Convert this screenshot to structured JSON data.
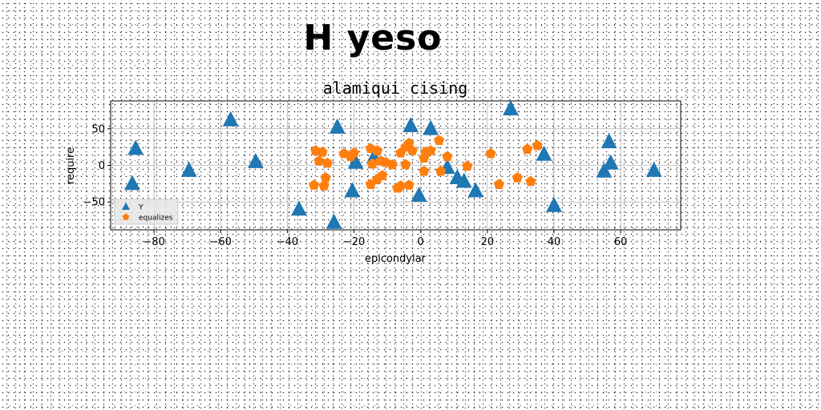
{
  "figure_title": "H yeso",
  "chart_data": {
    "type": "scatter",
    "title": "alamiqui cising",
    "xlabel": "epicondylar",
    "ylabel": "require",
    "xlim": [
      -93,
      78
    ],
    "ylim": [
      -88,
      88
    ],
    "xticks": [
      -80,
      -60,
      -40,
      -20,
      0,
      20,
      40,
      60
    ],
    "yticks": [
      -50,
      0,
      50
    ],
    "grid": true,
    "legend": "lower-left",
    "series": [
      {
        "name": "Y",
        "marker": "triangle",
        "color": "#1f77b4",
        "points": [
          [
            -85.5,
            23
          ],
          [
            -86.5,
            -25
          ],
          [
            -69.5,
            -7
          ],
          [
            -57,
            62
          ],
          [
            -49.5,
            5
          ],
          [
            -36.5,
            -60
          ],
          [
            -25,
            52
          ],
          [
            -26,
            -78
          ],
          [
            -20.5,
            -35
          ],
          [
            -19.5,
            4
          ],
          [
            -14,
            11
          ],
          [
            -3,
            54
          ],
          [
            3,
            50
          ],
          [
            27,
            77
          ],
          [
            37,
            15
          ],
          [
            40,
            -55
          ],
          [
            56.5,
            32
          ],
          [
            57,
            3
          ],
          [
            55,
            -8
          ],
          [
            70,
            -7
          ],
          [
            -0.5,
            -41
          ],
          [
            8,
            -3
          ],
          [
            11,
            -17
          ],
          [
            13,
            -22
          ],
          [
            16.5,
            -35
          ]
        ]
      },
      {
        "name": "equalizes",
        "marker": "pentagon",
        "color": "#ff7f0e",
        "points": [
          [
            -31.5,
            20
          ],
          [
            -29.5,
            18
          ],
          [
            -30.5,
            6
          ],
          [
            -28,
            3
          ],
          [
            -32,
            -27
          ],
          [
            -29,
            -28
          ],
          [
            -28.5,
            -17
          ],
          [
            -23,
            16
          ],
          [
            -21,
            12
          ],
          [
            -20,
            17
          ],
          [
            -15,
            23
          ],
          [
            -13,
            20
          ],
          [
            -14.5,
            2
          ],
          [
            -12,
            6
          ],
          [
            -15,
            -26
          ],
          [
            -13,
            -19
          ],
          [
            -11.5,
            -14
          ],
          [
            -10.5,
            4
          ],
          [
            -8.5,
            1
          ],
          [
            -7,
            -31
          ],
          [
            -6,
            17
          ],
          [
            -4.5,
            25
          ],
          [
            -3.5,
            30
          ],
          [
            -2.5,
            20
          ],
          [
            -4.5,
            1
          ],
          [
            -6,
            -28
          ],
          [
            -3.5,
            -27
          ],
          [
            1,
            10
          ],
          [
            1.5,
            18
          ],
          [
            3,
            20
          ],
          [
            1,
            -8
          ],
          [
            5.5,
            34
          ],
          [
            6,
            -8
          ],
          [
            8,
            12
          ],
          [
            14,
            -1
          ],
          [
            21,
            16
          ],
          [
            23.5,
            -26
          ],
          [
            29,
            -17
          ],
          [
            32,
            22
          ],
          [
            35,
            27
          ],
          [
            33,
            -22
          ]
        ]
      }
    ]
  }
}
